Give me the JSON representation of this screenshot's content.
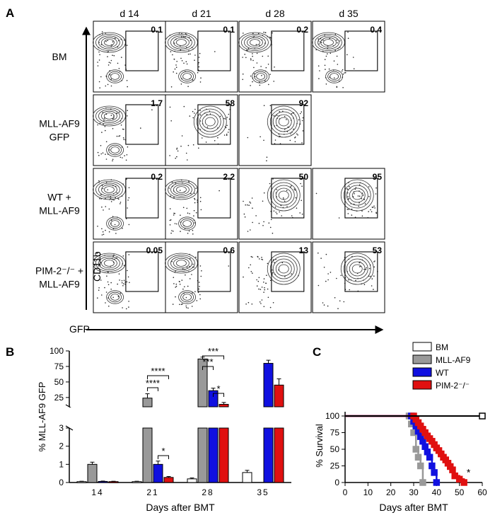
{
  "panel_labels": {
    "a": "A",
    "b": "B",
    "c": "C"
  },
  "flow": {
    "columns": [
      "d 14",
      "d 21",
      "d 28",
      "d 35"
    ],
    "rows": [
      {
        "label": [
          "BM"
        ],
        "values": [
          "0.1",
          "0.1",
          "0.2",
          "0.4"
        ]
      },
      {
        "label": [
          "MLL-AF9",
          "GFP"
        ],
        "values": [
          "1.7",
          "58",
          "92",
          null
        ]
      },
      {
        "label": [
          "WT +",
          "MLL-AF9"
        ],
        "values": [
          "0.2",
          "2.2",
          "50",
          "95"
        ]
      },
      {
        "label": [
          "PIM-2⁻/⁻ +",
          "MLL-AF9"
        ],
        "values": [
          "0.05",
          "0.6",
          "13",
          "53"
        ]
      }
    ],
    "y_axis_label": "CD11b",
    "x_axis_label": "GFP",
    "colors": {
      "line": "#000000",
      "contour": "#333333"
    }
  },
  "chart_data": [
    {
      "type": "bar",
      "panel": "B",
      "ylabel": "% MLL-AF9 GFP",
      "xlabel": "Days after BMT",
      "categories": [
        "14",
        "21",
        "28",
        "35"
      ],
      "broken_axis": true,
      "y_ticks_lower": [
        "0",
        "1",
        "2",
        "3"
      ],
      "y_ticks_upper": [
        "25",
        "50",
        "75",
        "100"
      ],
      "ylim_lower": [
        0,
        3
      ],
      "ylim_upper": [
        10,
        100
      ],
      "series": [
        {
          "color": "#ffffff",
          "values": [
            0.05,
            0.05,
            0.2,
            0.55
          ],
          "errors": [
            0.02,
            0.02,
            0.05,
            0.12
          ]
        },
        {
          "color": "#999999",
          "values": [
            1.0,
            24,
            87,
            null
          ],
          "errors": [
            0.12,
            7,
            3,
            null
          ]
        },
        {
          "color": "#1010e0",
          "values": [
            0.06,
            1.0,
            36,
            80
          ],
          "errors": [
            0.02,
            0.18,
            4,
            5
          ]
        },
        {
          "color": "#e01010",
          "values": [
            0.05,
            0.28,
            14,
            45
          ],
          "errors": [
            0.02,
            0.05,
            3,
            10
          ]
        }
      ],
      "significance": [
        {
          "group": "21",
          "text": "****"
        },
        {
          "group": "21",
          "text": "****"
        },
        {
          "group": "21",
          "text": "*"
        },
        {
          "group": "28",
          "text": "***"
        },
        {
          "group": "28",
          "text": "***"
        },
        {
          "group": "28",
          "text": "*"
        }
      ]
    },
    {
      "type": "line",
      "panel": "C",
      "ylabel": "% Survival",
      "xlabel": "Days after BMT",
      "xlim": [
        0,
        60
      ],
      "ylim": [
        0,
        100
      ],
      "x_ticks": [
        "0",
        "10",
        "20",
        "30",
        "40",
        "50",
        "60"
      ],
      "y_ticks": [
        "0",
        "25",
        "50",
        "75",
        "100"
      ],
      "legend": [
        "BM",
        "MLL-AF9",
        "WT",
        "PIM-2⁻/⁻"
      ],
      "legend_position": "top-right",
      "annotation": "*",
      "series": [
        {
          "name": "BM",
          "color": "#ffffff",
          "x": [
            0,
            60
          ],
          "y": [
            100,
            100
          ]
        },
        {
          "name": "MLL-AF9",
          "color": "#999999",
          "x": [
            0,
            28,
            29,
            30,
            31,
            32,
            33,
            34
          ],
          "y": [
            100,
            100,
            88,
            75,
            50,
            38,
            25,
            0
          ]
        },
        {
          "name": "WT",
          "color": "#1010e0",
          "x": [
            0,
            29,
            30,
            31,
            32,
            33,
            34,
            35,
            36,
            37,
            38,
            39,
            40
          ],
          "y": [
            100,
            100,
            92,
            85,
            77,
            69,
            62,
            54,
            46,
            38,
            25,
            15,
            0
          ]
        },
        {
          "name": "PIM-2⁻/⁻",
          "color": "#e01010",
          "x": [
            0,
            30,
            31,
            32,
            33,
            34,
            35,
            36,
            37,
            38,
            39,
            40,
            41,
            42,
            43,
            44,
            45,
            46,
            47,
            48,
            50,
            52
          ],
          "y": [
            100,
            100,
            95,
            90,
            85,
            80,
            75,
            70,
            66,
            62,
            57,
            52,
            48,
            43,
            38,
            34,
            29,
            24,
            19,
            10,
            5,
            0
          ]
        }
      ]
    }
  ]
}
